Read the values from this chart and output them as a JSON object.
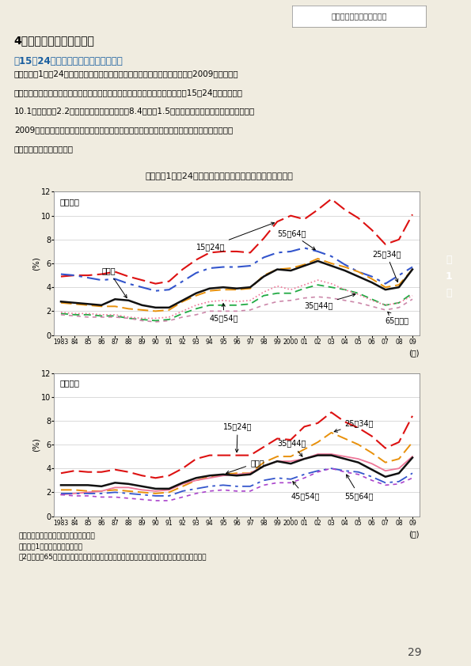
{
  "title": "第１－（1）－24図　男女別、年齢階級別完全失業率の推移",
  "years": [
    1983,
    1984,
    1985,
    1986,
    1987,
    1988,
    1989,
    1990,
    1991,
    1992,
    1993,
    1994,
    1995,
    1996,
    1997,
    1998,
    1999,
    2000,
    2001,
    2002,
    2003,
    2004,
    2005,
    2006,
    2007,
    2008,
    2009
  ],
  "male": {
    "15_24": [
      4.9,
      5.0,
      5.0,
      5.1,
      5.3,
      4.9,
      4.6,
      4.3,
      4.5,
      5.5,
      6.3,
      6.9,
      7.0,
      7.0,
      6.9,
      8.1,
      9.5,
      10.0,
      9.7,
      10.5,
      11.4,
      10.5,
      9.8,
      8.8,
      7.6,
      8.0,
      10.1
    ],
    "25_34": [
      2.7,
      2.6,
      2.5,
      2.4,
      2.4,
      2.2,
      2.1,
      2.0,
      2.1,
      2.8,
      3.3,
      3.7,
      3.8,
      3.8,
      3.9,
      5.0,
      5.5,
      5.6,
      5.9,
      6.4,
      6.0,
      5.7,
      5.3,
      4.7,
      4.0,
      4.2,
      5.5
    ],
    "35_44": [
      1.8,
      1.7,
      1.7,
      1.6,
      1.6,
      1.4,
      1.3,
      1.2,
      1.3,
      1.8,
      2.2,
      2.5,
      2.5,
      2.5,
      2.6,
      3.3,
      3.5,
      3.5,
      3.9,
      4.2,
      4.0,
      3.8,
      3.5,
      3.0,
      2.5,
      2.7,
      3.5
    ],
    "45_54": [
      1.9,
      1.8,
      1.8,
      1.7,
      1.7,
      1.5,
      1.4,
      1.4,
      1.5,
      2.0,
      2.5,
      2.8,
      2.9,
      2.8,
      2.9,
      3.6,
      4.1,
      3.8,
      4.2,
      4.6,
      4.3,
      3.8,
      3.4,
      2.9,
      2.5,
      2.7,
      3.3
    ],
    "55_64": [
      5.1,
      5.0,
      4.8,
      4.6,
      4.7,
      4.3,
      4.0,
      3.7,
      3.8,
      4.5,
      5.2,
      5.6,
      5.7,
      5.7,
      5.8,
      6.5,
      6.9,
      7.0,
      7.3,
      7.0,
      6.6,
      5.9,
      5.3,
      4.9,
      4.3,
      5.0,
      5.7
    ],
    "65plus": [
      1.7,
      1.6,
      1.5,
      1.5,
      1.5,
      1.4,
      1.2,
      1.1,
      1.2,
      1.5,
      1.7,
      2.0,
      2.0,
      2.0,
      2.1,
      2.5,
      2.8,
      2.9,
      3.1,
      3.2,
      3.1,
      2.9,
      2.7,
      2.4,
      2.1,
      2.3,
      3.0
    ],
    "nenrei_keisan": [
      2.8,
      2.7,
      2.6,
      2.5,
      3.0,
      2.9,
      2.5,
      2.3,
      2.3,
      2.9,
      3.5,
      3.9,
      4.0,
      3.9,
      4.0,
      4.9,
      5.5,
      5.4,
      5.8,
      6.2,
      5.8,
      5.4,
      4.9,
      4.4,
      3.8,
      4.0,
      5.5
    ]
  },
  "female": {
    "15_24": [
      3.6,
      3.8,
      3.7,
      3.7,
      3.9,
      3.7,
      3.4,
      3.2,
      3.4,
      4.0,
      4.8,
      5.1,
      5.1,
      5.1,
      5.1,
      5.8,
      6.5,
      6.4,
      7.5,
      7.8,
      8.7,
      7.9,
      7.4,
      6.7,
      5.7,
      6.2,
      8.4
    ],
    "25_34": [
      2.2,
      2.2,
      2.1,
      2.1,
      2.2,
      2.1,
      2.0,
      1.9,
      2.0,
      2.5,
      3.0,
      3.3,
      3.5,
      3.6,
      3.6,
      4.5,
      5.0,
      5.0,
      5.6,
      6.2,
      7.0,
      6.5,
      6.0,
      5.3,
      4.5,
      4.8,
      6.2
    ],
    "35_44": [
      1.8,
      1.9,
      2.0,
      2.1,
      2.4,
      2.4,
      2.2,
      2.1,
      2.2,
      2.7,
      3.0,
      3.2,
      3.4,
      3.5,
      3.6,
      4.2,
      4.6,
      4.6,
      4.8,
      5.2,
      5.2,
      5.0,
      4.8,
      4.4,
      3.8,
      4.0,
      5.0
    ],
    "45_54": [
      1.9,
      1.9,
      1.9,
      1.9,
      2.0,
      1.9,
      1.8,
      1.7,
      1.7,
      2.1,
      2.3,
      2.5,
      2.6,
      2.5,
      2.5,
      3.0,
      3.2,
      3.1,
      3.5,
      3.8,
      4.0,
      3.8,
      3.7,
      3.3,
      2.8,
      2.9,
      3.6
    ],
    "55_64": [
      1.8,
      1.7,
      1.7,
      1.6,
      1.6,
      1.5,
      1.4,
      1.3,
      1.3,
      1.6,
      1.9,
      2.1,
      2.2,
      2.1,
      2.1,
      2.6,
      2.8,
      2.8,
      3.2,
      3.7,
      4.0,
      3.7,
      3.5,
      3.0,
      2.6,
      2.7,
      3.2
    ],
    "nenrei_keisan": [
      2.6,
      2.6,
      2.6,
      2.5,
      2.8,
      2.7,
      2.5,
      2.3,
      2.3,
      2.8,
      3.2,
      3.4,
      3.5,
      3.4,
      3.5,
      4.2,
      4.6,
      4.4,
      4.8,
      5.1,
      5.1,
      4.8,
      4.5,
      3.9,
      3.3,
      3.6,
      4.9
    ]
  },
  "bg_color": "#f0ece0",
  "plot_bg_color": "#ffffff",
  "chart_bg_color": "#ede8d8",
  "header_text": "雇用、失業の動向　第１節",
  "section_tab_text": "第\n1\n節",
  "section_tab_dark": "#4a8bbf",
  "section_tab_light": "#c5d8ec",
  "subtitle1": "4）若年者の雇用失業情勢",
  "subtitle2_color": "#1a5fa0",
  "subtitle2": "《15～24歳層で強化した完全失業率》",
  "source_text1": "資料出所　総務省統計局『労働力調査』",
  "source_text2": "（注）　1）データは年平均値。",
  "source_text3": "　2）女性の65歳以上については、統計的に有意であると考えられないので、掲載していない。",
  "xlabel_text": "(年)",
  "ylabel_text": "(%)",
  "year_labels": [
    "1983",
    "84",
    "85",
    "86",
    "87",
    "88",
    "89",
    "90",
    "91",
    "92",
    "93",
    "94",
    "95",
    "96",
    "97",
    "98",
    "99",
    "2000",
    "01",
    "02",
    "03",
    "04",
    "05",
    "06",
    "07",
    "08",
    "09"
  ],
  "male_label_15_24": "15～24歳",
  "male_label_25_34": "25～34歳",
  "male_label_35_44": "35～44歳",
  "male_label_45_54": "45～54歳",
  "male_label_55_64": "55～64歳",
  "male_label_65plus": "65歳以上",
  "male_label_total": "年齢計",
  "male_gender": "（男性）",
  "female_gender": "（女性）",
  "female_label_15_24": "15～24歳",
  "female_label_25_34": "25～34歳",
  "female_label_35_44": "35～44歳",
  "female_label_45_54": "45～54歳",
  "female_label_55_64": "55～64歳",
  "female_label_total": "年齢計",
  "page_number": "29"
}
